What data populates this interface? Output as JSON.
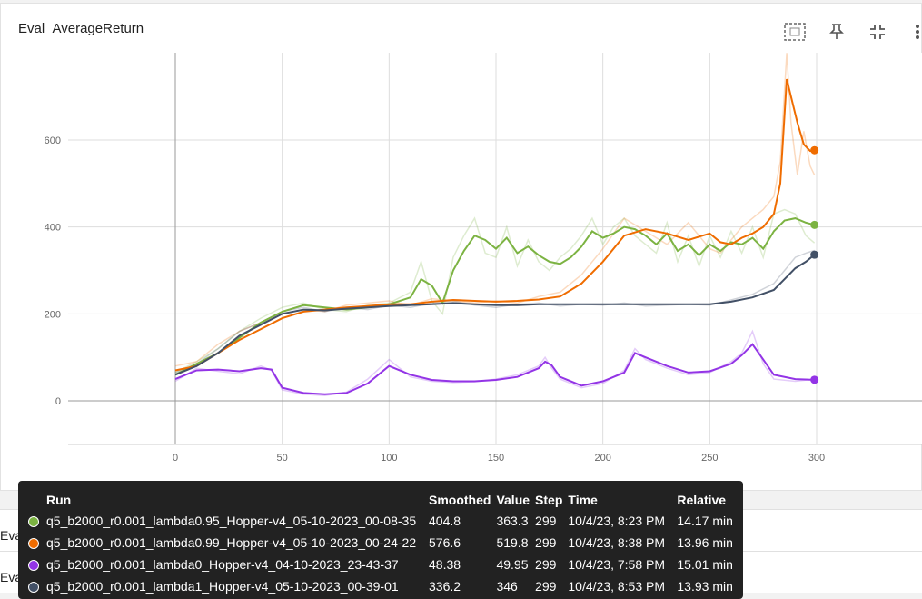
{
  "card": {
    "title": "Eval_AverageReturn"
  },
  "toolbar": [
    "fit-icon",
    "pin-icon",
    "collapse-icon",
    "more-icon"
  ],
  "collapsed_cards": [
    "Eval_MaxReturn",
    "Eval_MinReturn"
  ],
  "chart_data": {
    "type": "line",
    "x_ticks": [
      0,
      50,
      100,
      150,
      200,
      250,
      300
    ],
    "y_ticks": [
      0,
      200,
      400,
      600
    ],
    "xlim": [
      -48,
      348
    ],
    "ylim": [
      -100,
      800
    ],
    "grid": true,
    "series": [
      {
        "name": "q5_b2000_r0.001_lambda0.95_Hopper-v4_05-10-2023_00-08-35",
        "color": "#7cb342",
        "x": [
          0,
          10,
          20,
          30,
          40,
          50,
          60,
          70,
          80,
          90,
          100,
          110,
          115,
          120,
          125,
          130,
          135,
          140,
          145,
          150,
          155,
          160,
          165,
          170,
          175,
          180,
          185,
          190,
          195,
          200,
          205,
          210,
          215,
          220,
          225,
          230,
          235,
          240,
          245,
          250,
          255,
          260,
          265,
          270,
          275,
          280,
          285,
          290,
          295,
          299
        ],
        "smoothed": [
          60,
          85,
          110,
          145,
          180,
          205,
          220,
          215,
          210,
          215,
          222,
          238,
          280,
          265,
          225,
          300,
          345,
          380,
          370,
          350,
          375,
          340,
          355,
          335,
          320,
          315,
          330,
          355,
          390,
          375,
          385,
          400,
          395,
          380,
          360,
          385,
          345,
          360,
          335,
          360,
          345,
          365,
          360,
          375,
          350,
          390,
          415,
          420,
          410,
          404.8
        ],
        "raw": [
          65,
          90,
          120,
          160,
          190,
          215,
          225,
          210,
          205,
          220,
          225,
          250,
          320,
          230,
          200,
          330,
          380,
          420,
          340,
          330,
          400,
          310,
          370,
          320,
          300,
          330,
          350,
          380,
          420,
          360,
          400,
          420,
          380,
          360,
          340,
          410,
          320,
          380,
          310,
          380,
          330,
          390,
          340,
          400,
          330,
          430,
          440,
          430,
          380,
          363.3
        ]
      },
      {
        "name": "q5_b2000_r0.001_lambda0.99_Hopper-v4_05-10-2023_00-24-22",
        "color": "#ef6c00",
        "x": [
          0,
          10,
          20,
          30,
          40,
          50,
          60,
          70,
          80,
          90,
          100,
          110,
          120,
          130,
          140,
          150,
          160,
          170,
          180,
          190,
          200,
          210,
          220,
          230,
          240,
          250,
          255,
          260,
          265,
          270,
          275,
          280,
          283,
          286,
          288,
          291,
          294,
          297,
          299
        ],
        "smoothed": [
          70,
          80,
          110,
          140,
          165,
          190,
          205,
          210,
          215,
          218,
          222,
          222,
          228,
          232,
          230,
          228,
          230,
          233,
          240,
          270,
          320,
          380,
          395,
          385,
          370,
          385,
          365,
          360,
          375,
          385,
          400,
          430,
          500,
          740,
          700,
          640,
          590,
          575,
          576.6
        ],
        "raw": [
          80,
          90,
          130,
          160,
          180,
          200,
          210,
          205,
          220,
          225,
          230,
          220,
          235,
          230,
          225,
          230,
          225,
          240,
          250,
          290,
          350,
          420,
          390,
          360,
          410,
          350,
          340,
          370,
          400,
          420,
          440,
          470,
          550,
          800,
          640,
          520,
          620,
          540,
          519.8
        ]
      },
      {
        "name": "q5_b2000_r0.001_lambda0_Hopper-v4_04-10-2023_23-43-37",
        "color": "#9334e6",
        "x": [
          0,
          10,
          20,
          30,
          40,
          45,
          50,
          60,
          70,
          80,
          90,
          100,
          110,
          120,
          130,
          140,
          150,
          160,
          170,
          173,
          176,
          180,
          190,
          200,
          210,
          215,
          220,
          230,
          240,
          250,
          260,
          265,
          270,
          275,
          280,
          290,
          299
        ],
        "smoothed": [
          50,
          70,
          72,
          68,
          75,
          72,
          30,
          18,
          15,
          18,
          40,
          80,
          60,
          48,
          45,
          45,
          48,
          55,
          75,
          90,
          82,
          55,
          35,
          45,
          65,
          110,
          100,
          80,
          65,
          68,
          85,
          105,
          130,
          95,
          60,
          50,
          48.38
        ],
        "raw": [
          45,
          75,
          68,
          62,
          80,
          70,
          25,
          15,
          12,
          20,
          50,
          95,
          55,
          45,
          42,
          44,
          50,
          60,
          80,
          100,
          75,
          50,
          30,
          40,
          70,
          120,
          95,
          75,
          60,
          65,
          90,
          110,
          160,
          85,
          50,
          45,
          49.95
        ]
      },
      {
        "name": "q5_b2000_r0.001_lambda1_Hopper-v4_05-10-2023_00-39-01",
        "color": "#425066",
        "x": [
          0,
          10,
          20,
          30,
          40,
          50,
          60,
          70,
          80,
          90,
          100,
          110,
          120,
          130,
          140,
          150,
          160,
          170,
          180,
          190,
          200,
          210,
          220,
          230,
          240,
          250,
          260,
          270,
          280,
          285,
          290,
          295,
          299
        ],
        "smoothed": [
          60,
          80,
          110,
          150,
          175,
          200,
          210,
          208,
          212,
          215,
          218,
          220,
          222,
          225,
          222,
          220,
          220,
          222,
          222,
          222,
          222,
          222,
          222,
          222,
          222,
          222,
          228,
          238,
          255,
          280,
          305,
          320,
          336.2
        ],
        "raw": [
          65,
          85,
          120,
          160,
          180,
          205,
          215,
          205,
          215,
          210,
          220,
          215,
          225,
          230,
          220,
          215,
          222,
          225,
          218,
          222,
          220,
          225,
          218,
          220,
          222,
          220,
          232,
          245,
          270,
          300,
          330,
          340,
          346
        ]
      }
    ]
  },
  "tooltip": {
    "headers": {
      "run": "Run",
      "smoothed": "Smoothed",
      "value": "Value",
      "step": "Step",
      "time": "Time",
      "relative": "Relative"
    },
    "rows": [
      {
        "color": "#7cb342",
        "run": "q5_b2000_r0.001_lambda0.95_Hopper-v4_05-10-2023_00-08-35",
        "smoothed": "404.8",
        "value": "363.3",
        "step": "299",
        "time": "10/4/23, 8:23 PM",
        "relative": "14.17 min"
      },
      {
        "color": "#ef6c00",
        "run": "q5_b2000_r0.001_lambda0.99_Hopper-v4_05-10-2023_00-24-22",
        "smoothed": "576.6",
        "value": "519.8",
        "step": "299",
        "time": "10/4/23, 8:38 PM",
        "relative": "13.96 min"
      },
      {
        "color": "#9334e6",
        "run": "q5_b2000_r0.001_lambda0_Hopper-v4_04-10-2023_23-43-37",
        "smoothed": "48.38",
        "value": "49.95",
        "step": "299",
        "time": "10/4/23, 7:58 PM",
        "relative": "15.01 min"
      },
      {
        "color": "#425066",
        "run": "q5_b2000_r0.001_lambda1_Hopper-v4_05-10-2023_00-39-01",
        "smoothed": "336.2",
        "value": "346",
        "step": "299",
        "time": "10/4/23, 8:53 PM",
        "relative": "13.93 min"
      }
    ]
  }
}
